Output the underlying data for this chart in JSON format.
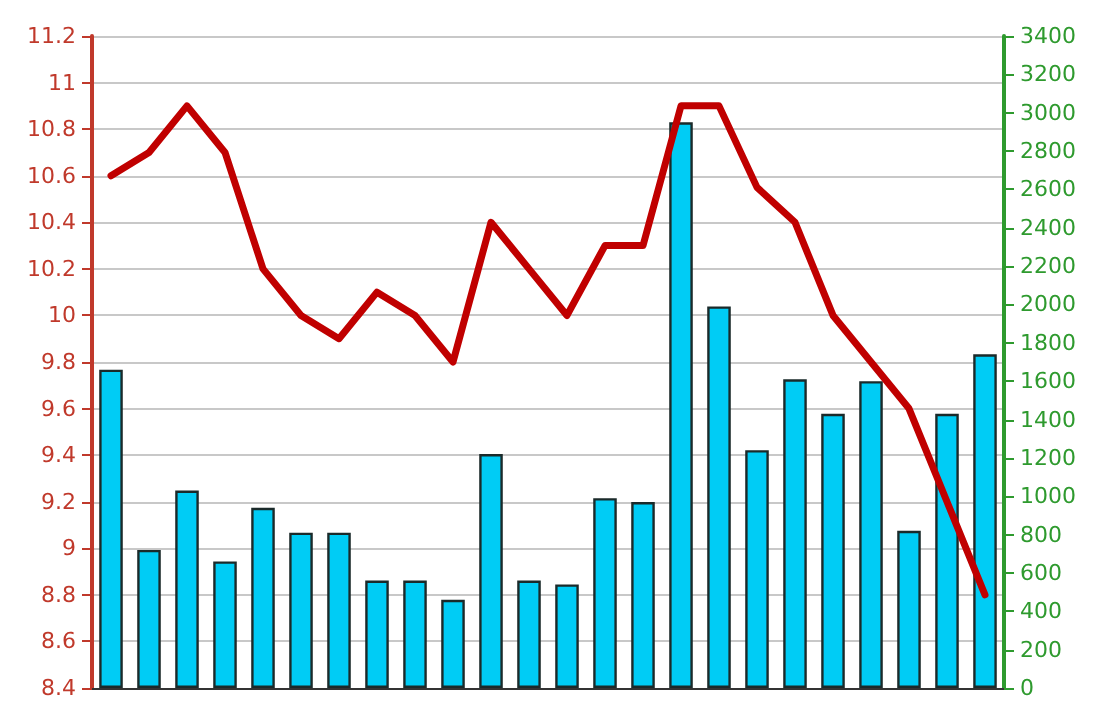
{
  "chart_data": {
    "type": "bar",
    "categories": [
      null,
      null,
      null,
      null,
      null,
      null,
      null,
      null,
      null,
      null,
      null,
      null,
      null,
      null,
      null,
      null,
      null,
      null,
      null,
      null,
      null,
      null,
      null,
      null
    ],
    "series": [
      {
        "axis": "y2",
        "color": "#00ccf5",
        "values": [
          1660,
          720,
          1030,
          660,
          940,
          810,
          810,
          560,
          560,
          460,
          1220,
          560,
          540,
          990,
          970,
          2950,
          1990,
          1240,
          1610,
          1430,
          1600,
          820,
          1430,
          1740
        ]
      },
      {
        "type": "line",
        "color": "#c00000",
        "values": [
          10.6,
          10.7,
          10.9,
          10.7,
          10.2,
          10.0,
          9.9,
          10.1,
          10.0,
          9.8,
          10.4,
          10.2,
          10.0,
          10.3,
          10.3,
          10.9,
          10.9,
          10.55,
          10.4,
          10.0,
          9.8,
          9.6,
          9.2,
          8.8
        ]
      }
    ],
    "ylim": [
      8.4,
      11.2
    ],
    "yticks": [
      8.4,
      8.6,
      8.8,
      9,
      9.2,
      9.4,
      9.6,
      9.8,
      10,
      10.2,
      10.4,
      10.6,
      10.8,
      11,
      11.2
    ],
    "y2lim": [
      0,
      3400
    ],
    "y2ticks": [
      0,
      200,
      400,
      600,
      800,
      1000,
      1200,
      1400,
      1600,
      1800,
      2000,
      2200,
      2400,
      2600,
      2800,
      3000,
      3200,
      3400
    ],
    "grid": "y",
    "marker": "none",
    "line_style": "solid"
  }
}
